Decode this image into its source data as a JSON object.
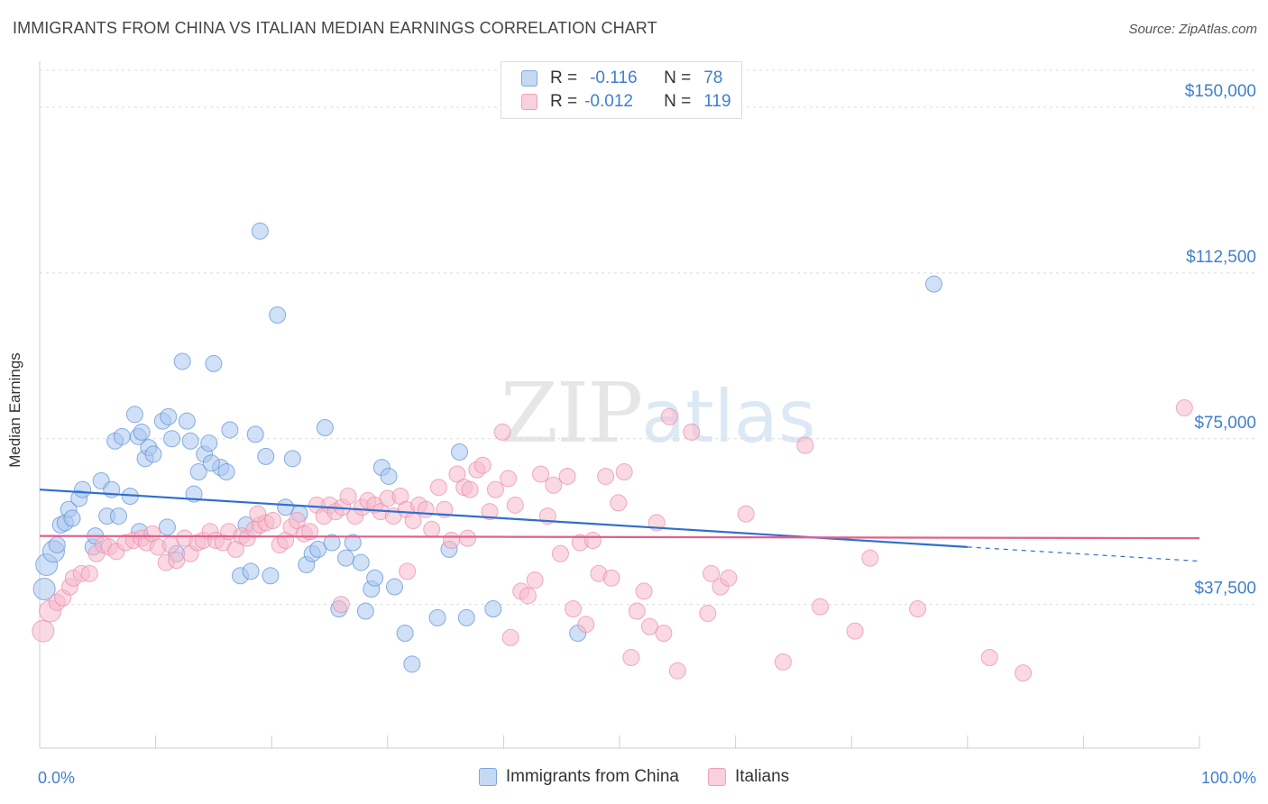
{
  "title": "IMMIGRANTS FROM CHINA VS ITALIAN MEDIAN EARNINGS CORRELATION CHART",
  "source": "Source: ZipAtlas.com",
  "watermark": {
    "zip": "ZIP",
    "atlas": "atlas"
  },
  "legend": {
    "rows": [
      {
        "r_label": "R =",
        "r_value": "-0.116",
        "n_label": "N =",
        "n_value": "78",
        "color": "#a9c6ee"
      },
      {
        "r_label": "R =",
        "r_value": "-0.012",
        "n_label": "N =",
        "n_value": "119",
        "color": "#f6b9cc"
      }
    ]
  },
  "bottom_legend": [
    {
      "label": "Immigrants from China",
      "color": "#a9c6ee"
    },
    {
      "label": "Italians",
      "color": "#f6b9cc"
    }
  ],
  "chart_data": {
    "type": "scatter",
    "title": "IMMIGRANTS FROM CHINA VS ITALIAN MEDIAN EARNINGS CORRELATION CHART",
    "xlabel": "",
    "ylabel": "Median Earnings",
    "xlim": [
      0,
      100
    ],
    "ylim": [
      5000,
      160000
    ],
    "x_tick_labels": [
      "0.0%",
      "100.0%"
    ],
    "y_ticks": [
      37500,
      75000,
      112500,
      150000
    ],
    "y_tick_labels": [
      "$37,500",
      "$75,000",
      "$112,500",
      "$150,000"
    ],
    "grid": "horizontal-dashed",
    "legend_position": "top-center",
    "series": [
      {
        "name": "Immigrants from China",
        "color": "#5b8fd6",
        "fill": "#a9c6ee",
        "trend": {
          "x0": 0,
          "y0": 63500,
          "x1": 80,
          "y1": 50500,
          "dashed_to_x": 100,
          "dashed_to_y": 47300
        },
        "points": [
          [
            0.4,
            41000
          ],
          [
            0.6,
            46500
          ],
          [
            1.2,
            49500
          ],
          [
            1.5,
            51000
          ],
          [
            1.8,
            55500
          ],
          [
            2.2,
            56000
          ],
          [
            2.5,
            59000
          ],
          [
            2.8,
            57000
          ],
          [
            3.4,
            61500
          ],
          [
            3.7,
            63500
          ],
          [
            4.6,
            50500
          ],
          [
            4.8,
            53000
          ],
          [
            5.3,
            65500
          ],
          [
            5.8,
            57500
          ],
          [
            6.2,
            63500
          ],
          [
            6.8,
            57500
          ],
          [
            6.5,
            74500
          ],
          [
            7.1,
            75500
          ],
          [
            7.8,
            62000
          ],
          [
            8.2,
            80500
          ],
          [
            8.5,
            75500
          ],
          [
            8.8,
            76500
          ],
          [
            9.1,
            70500
          ],
          [
            9.4,
            73000
          ],
          [
            9.8,
            71500
          ],
          [
            10.6,
            79000
          ],
          [
            11.1,
            80000
          ],
          [
            11.4,
            75000
          ],
          [
            11.8,
            49000
          ],
          [
            12.3,
            92500
          ],
          [
            12.7,
            79000
          ],
          [
            13.0,
            74500
          ],
          [
            13.3,
            62500
          ],
          [
            13.7,
            67500
          ],
          [
            14.2,
            71500
          ],
          [
            14.6,
            74000
          ],
          [
            15.0,
            92000
          ],
          [
            15.6,
            68500
          ],
          [
            16.1,
            67500
          ],
          [
            16.4,
            77000
          ],
          [
            17.3,
            44000
          ],
          [
            17.8,
            55500
          ],
          [
            18.2,
            45000
          ],
          [
            18.6,
            76000
          ],
          [
            19.0,
            122000
          ],
          [
            19.5,
            71000
          ],
          [
            19.9,
            44000
          ],
          [
            20.5,
            103000
          ],
          [
            21.2,
            59500
          ],
          [
            21.8,
            70500
          ],
          [
            22.4,
            58000
          ],
          [
            23.0,
            46500
          ],
          [
            23.5,
            49000
          ],
          [
            24.0,
            50000
          ],
          [
            24.6,
            77500
          ],
          [
            25.2,
            51500
          ],
          [
            25.8,
            36500
          ],
          [
            26.4,
            48000
          ],
          [
            27.0,
            51500
          ],
          [
            27.7,
            47000
          ],
          [
            28.1,
            36000
          ],
          [
            28.6,
            41000
          ],
          [
            28.9,
            43500
          ],
          [
            29.5,
            68500
          ],
          [
            30.1,
            66500
          ],
          [
            30.6,
            41500
          ],
          [
            31.5,
            31000
          ],
          [
            32.1,
            24000
          ],
          [
            34.3,
            34500
          ],
          [
            35.3,
            50000
          ],
          [
            36.2,
            72000
          ],
          [
            36.8,
            34500
          ],
          [
            39.1,
            36500
          ],
          [
            46.4,
            31000
          ],
          [
            77.1,
            110000
          ],
          [
            14.8,
            69500
          ],
          [
            11.0,
            55000
          ],
          [
            8.6,
            54000
          ]
        ]
      },
      {
        "name": "Italians",
        "color": "#e98aa9",
        "fill": "#f6b9cc",
        "trend": {
          "x0": 0,
          "y0": 53000,
          "x1": 100,
          "y1": 52500
        },
        "points": [
          [
            0.3,
            31500
          ],
          [
            0.9,
            36000
          ],
          [
            1.5,
            38000
          ],
          [
            2.0,
            39000
          ],
          [
            2.6,
            41500
          ],
          [
            2.9,
            43500
          ],
          [
            3.6,
            44500
          ],
          [
            4.3,
            44500
          ],
          [
            4.9,
            49000
          ],
          [
            5.5,
            51000
          ],
          [
            6.0,
            50500
          ],
          [
            6.6,
            49500
          ],
          [
            7.4,
            51500
          ],
          [
            8.1,
            52000
          ],
          [
            8.8,
            52500
          ],
          [
            9.2,
            51500
          ],
          [
            9.7,
            53500
          ],
          [
            10.2,
            50500
          ],
          [
            10.9,
            47000
          ],
          [
            11.3,
            51000
          ],
          [
            11.8,
            47500
          ],
          [
            12.5,
            52500
          ],
          [
            13.0,
            49000
          ],
          [
            13.6,
            51500
          ],
          [
            14.1,
            52000
          ],
          [
            14.7,
            54000
          ],
          [
            15.2,
            52000
          ],
          [
            15.8,
            51500
          ],
          [
            16.3,
            54000
          ],
          [
            16.9,
            50000
          ],
          [
            17.4,
            53000
          ],
          [
            17.9,
            52500
          ],
          [
            18.5,
            54500
          ],
          [
            19.0,
            55500
          ],
          [
            19.5,
            56000
          ],
          [
            20.1,
            56500
          ],
          [
            20.7,
            51000
          ],
          [
            21.2,
            52000
          ],
          [
            21.7,
            55000
          ],
          [
            22.2,
            56500
          ],
          [
            22.8,
            53500
          ],
          [
            23.3,
            54000
          ],
          [
            23.9,
            60000
          ],
          [
            24.5,
            57500
          ],
          [
            25.0,
            60000
          ],
          [
            25.5,
            58500
          ],
          [
            26.1,
            59500
          ],
          [
            26.6,
            62000
          ],
          [
            27.2,
            57500
          ],
          [
            27.8,
            59500
          ],
          [
            28.3,
            61000
          ],
          [
            28.9,
            60000
          ],
          [
            29.4,
            58500
          ],
          [
            30.0,
            61500
          ],
          [
            30.5,
            57500
          ],
          [
            31.1,
            62000
          ],
          [
            31.6,
            59000
          ],
          [
            32.2,
            56500
          ],
          [
            32.7,
            60000
          ],
          [
            33.3,
            59000
          ],
          [
            33.8,
            54500
          ],
          [
            34.4,
            64000
          ],
          [
            34.9,
            59000
          ],
          [
            35.5,
            52000
          ],
          [
            36.0,
            67000
          ],
          [
            36.6,
            64000
          ],
          [
            37.1,
            63500
          ],
          [
            37.7,
            68000
          ],
          [
            38.2,
            69000
          ],
          [
            38.8,
            58500
          ],
          [
            39.3,
            63500
          ],
          [
            39.9,
            76500
          ],
          [
            40.4,
            66000
          ],
          [
            41.0,
            60000
          ],
          [
            41.5,
            40500
          ],
          [
            42.1,
            39500
          ],
          [
            42.7,
            43000
          ],
          [
            43.2,
            67000
          ],
          [
            43.8,
            57500
          ],
          [
            44.3,
            64500
          ],
          [
            44.9,
            49000
          ],
          [
            45.5,
            66500
          ],
          [
            46.0,
            36500
          ],
          [
            46.6,
            51500
          ],
          [
            47.1,
            33000
          ],
          [
            47.7,
            52000
          ],
          [
            48.2,
            44500
          ],
          [
            48.8,
            66500
          ],
          [
            49.3,
            43500
          ],
          [
            49.9,
            60500
          ],
          [
            50.4,
            67500
          ],
          [
            51.0,
            25500
          ],
          [
            51.5,
            36000
          ],
          [
            52.1,
            40500
          ],
          [
            52.6,
            32500
          ],
          [
            53.2,
            56000
          ],
          [
            53.8,
            31000
          ],
          [
            54.3,
            80000
          ],
          [
            55.0,
            22500
          ],
          [
            56.2,
            76500
          ],
          [
            57.6,
            35500
          ],
          [
            58.7,
            41500
          ],
          [
            59.4,
            43500
          ],
          [
            60.9,
            58000
          ],
          [
            64.1,
            24500
          ],
          [
            66.0,
            73500
          ],
          [
            67.3,
            37000
          ],
          [
            70.3,
            31500
          ],
          [
            71.6,
            48000
          ],
          [
            75.7,
            36500
          ],
          [
            81.9,
            25500
          ],
          [
            84.8,
            22000
          ],
          [
            98.7,
            82000
          ],
          [
            31.7,
            45000
          ],
          [
            26.0,
            37500
          ],
          [
            18.8,
            58000
          ],
          [
            36.9,
            52500
          ],
          [
            57.9,
            44500
          ],
          [
            40.6,
            30000
          ]
        ]
      }
    ]
  }
}
